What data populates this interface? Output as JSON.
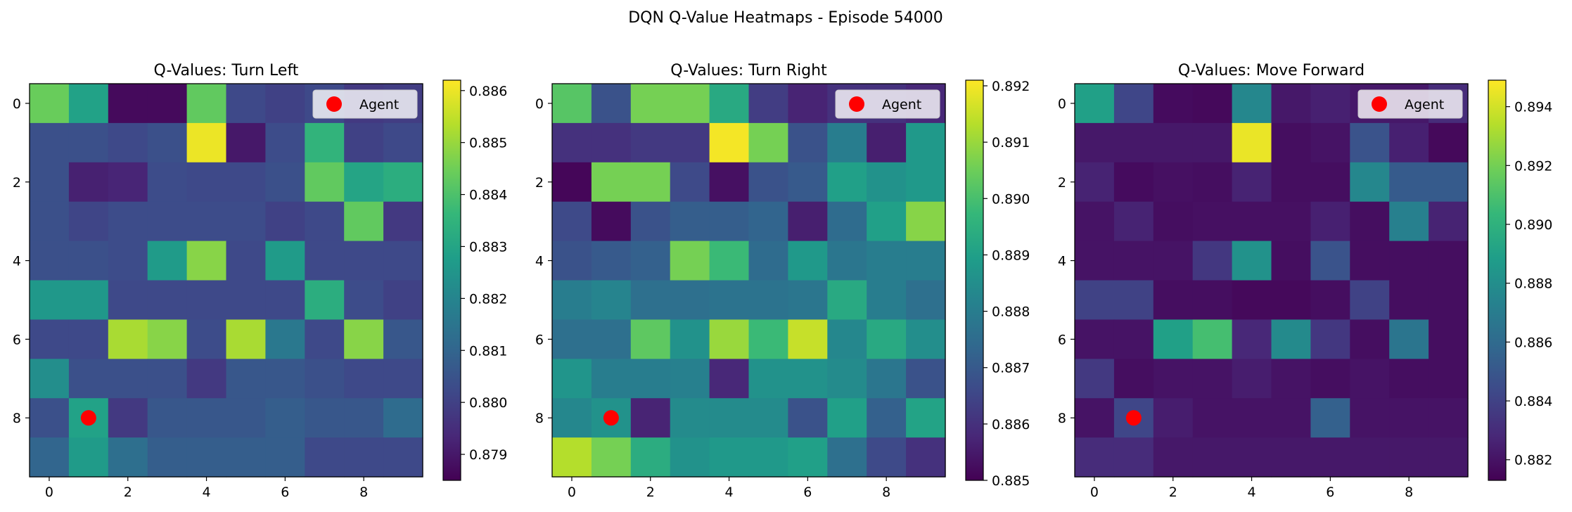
{
  "figure": {
    "suptitle": "DQN Q-Value Heatmaps - Episode 54000"
  },
  "colormap": "viridis",
  "chart_data": [
    {
      "type": "heatmap",
      "title": "Q-Values: Turn Left",
      "xticks": [
        0,
        2,
        4,
        6,
        8
      ],
      "yticks": [
        0,
        2,
        4,
        6,
        8
      ],
      "vmin": 0.8785,
      "vmax": 0.8862,
      "colorbar_ticks": [
        "0.879",
        "0.880",
        "0.881",
        "0.882",
        "0.883",
        "0.884",
        "0.885",
        "0.886"
      ],
      "legend": {
        "label": "Agent",
        "location": "upper right"
      },
      "agent": {
        "row": 8,
        "col": 1
      },
      "values": [
        [
          0.8844,
          0.8829,
          0.8787,
          0.8787,
          0.8843,
          0.8802,
          0.88,
          0.8802,
          0.8798,
          0.8799
        ],
        [
          0.8804,
          0.8804,
          0.8802,
          0.8804,
          0.886,
          0.879,
          0.8803,
          0.8835,
          0.88,
          0.8802
        ],
        [
          0.8804,
          0.8792,
          0.8793,
          0.8803,
          0.8802,
          0.8802,
          0.8804,
          0.8843,
          0.883,
          0.8833
        ],
        [
          0.8804,
          0.8801,
          0.8803,
          0.8803,
          0.8803,
          0.8803,
          0.88,
          0.8802,
          0.8843,
          0.8798
        ],
        [
          0.8804,
          0.8804,
          0.8803,
          0.8827,
          0.8848,
          0.8802,
          0.8827,
          0.8802,
          0.8802,
          0.8802
        ],
        [
          0.8826,
          0.8826,
          0.8802,
          0.8802,
          0.8802,
          0.8802,
          0.8802,
          0.8833,
          0.8803,
          0.88
        ],
        [
          0.8802,
          0.8802,
          0.8852,
          0.8848,
          0.8803,
          0.8852,
          0.8816,
          0.8802,
          0.8848,
          0.8806
        ],
        [
          0.8823,
          0.8804,
          0.8804,
          0.8804,
          0.8798,
          0.8806,
          0.8806,
          0.8804,
          0.8802,
          0.8802
        ],
        [
          0.8804,
          0.8829,
          0.8798,
          0.8806,
          0.8806,
          0.8806,
          0.8808,
          0.8806,
          0.8806,
          0.8812
        ],
        [
          0.881,
          0.8827,
          0.8813,
          0.8808,
          0.8808,
          0.8808,
          0.8808,
          0.8802,
          0.8802,
          0.8802
        ]
      ]
    },
    {
      "type": "heatmap",
      "title": "Q-Values: Turn Right",
      "xticks": [
        0,
        2,
        4,
        6,
        8
      ],
      "yticks": [
        0,
        2,
        4,
        6,
        8
      ],
      "vmin": 0.885,
      "vmax": 0.8921,
      "colorbar_ticks": [
        "0.885",
        "0.886",
        "0.887",
        "0.888",
        "0.889",
        "0.890",
        "0.891",
        "0.892"
      ],
      "legend": {
        "label": "Agent",
        "location": "upper right"
      },
      "agent": {
        "row": 8,
        "col": 1
      },
      "values": [
        [
          0.8902,
          0.8868,
          0.8906,
          0.8906,
          0.8893,
          0.8863,
          0.8857,
          0.886,
          0.886,
          0.8858
        ],
        [
          0.886,
          0.886,
          0.8862,
          0.8862,
          0.892,
          0.8906,
          0.8868,
          0.888,
          0.8856,
          0.8888
        ],
        [
          0.8851,
          0.8906,
          0.8906,
          0.8866,
          0.8853,
          0.8868,
          0.887,
          0.889,
          0.8886,
          0.8888
        ],
        [
          0.8866,
          0.8852,
          0.8868,
          0.8871,
          0.8871,
          0.8873,
          0.8856,
          0.8875,
          0.889,
          0.8908
        ],
        [
          0.8868,
          0.887,
          0.8872,
          0.8906,
          0.8898,
          0.8875,
          0.8888,
          0.8878,
          0.888,
          0.888
        ],
        [
          0.888,
          0.8882,
          0.8876,
          0.8876,
          0.8877,
          0.8877,
          0.8878,
          0.8893,
          0.888,
          0.8876
        ],
        [
          0.8876,
          0.8876,
          0.8903,
          0.8886,
          0.891,
          0.8898,
          0.8915,
          0.8883,
          0.8893,
          0.8885
        ],
        [
          0.8887,
          0.888,
          0.888,
          0.8881,
          0.8858,
          0.8886,
          0.8886,
          0.8884,
          0.8878,
          0.8868
        ],
        [
          0.8883,
          0.8886,
          0.8857,
          0.8884,
          0.8884,
          0.8884,
          0.8868,
          0.889,
          0.8872,
          0.8891
        ],
        [
          0.8913,
          0.8906,
          0.8894,
          0.8886,
          0.8888,
          0.8888,
          0.889,
          0.8876,
          0.8866,
          0.886
        ]
      ]
    },
    {
      "type": "heatmap",
      "title": "Q-Values: Move Forward",
      "xticks": [
        0,
        2,
        4,
        6,
        8
      ],
      "yticks": [
        0,
        2,
        4,
        6,
        8
      ],
      "vmin": 0.8813,
      "vmax": 0.8949,
      "colorbar_ticks": [
        "0.882",
        "0.884",
        "0.886",
        "0.888",
        "0.890",
        "0.892",
        "0.894"
      ],
      "legend": {
        "label": "Agent",
        "location": "upper right"
      },
      "agent": {
        "row": 8,
        "col": 1
      },
      "values": [
        [
          0.889,
          0.8842,
          0.8817,
          0.8816,
          0.8876,
          0.8822,
          0.8825,
          0.8822,
          0.8822,
          0.883
        ],
        [
          0.8822,
          0.8822,
          0.8822,
          0.8822,
          0.8945,
          0.8818,
          0.882,
          0.8848,
          0.8825,
          0.8816
        ],
        [
          0.8826,
          0.8817,
          0.8819,
          0.8818,
          0.8826,
          0.8818,
          0.8818,
          0.8876,
          0.8852,
          0.8852
        ],
        [
          0.882,
          0.8826,
          0.8818,
          0.8819,
          0.8819,
          0.8819,
          0.8825,
          0.8818,
          0.8872,
          0.8826
        ],
        [
          0.882,
          0.882,
          0.882,
          0.8835,
          0.8882,
          0.8818,
          0.8848,
          0.8818,
          0.8818,
          0.8818
        ],
        [
          0.884,
          0.884,
          0.8818,
          0.8818,
          0.8816,
          0.8816,
          0.8818,
          0.884,
          0.8818,
          0.8818
        ],
        [
          0.882,
          0.882,
          0.889,
          0.8908,
          0.8828,
          0.8878,
          0.8835,
          0.8818,
          0.8866,
          0.8818
        ],
        [
          0.8836,
          0.8818,
          0.882,
          0.882,
          0.8824,
          0.882,
          0.8818,
          0.882,
          0.8818,
          0.8818
        ],
        [
          0.882,
          0.8842,
          0.8824,
          0.882,
          0.882,
          0.882,
          0.8855,
          0.882,
          0.882,
          0.882
        ],
        [
          0.883,
          0.883,
          0.8822,
          0.8822,
          0.8822,
          0.8822,
          0.8822,
          0.8822,
          0.8822,
          0.8822
        ]
      ]
    }
  ]
}
